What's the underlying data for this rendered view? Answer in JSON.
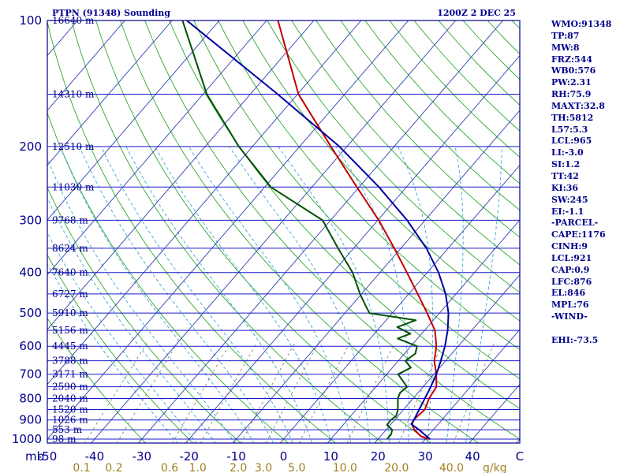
{
  "chart_data": {
    "type": "skew-t-log-p sounding",
    "title": "PTPN (91348) Sounding",
    "time_label": "1200Z  2 DEC 25",
    "units_label": "mb",
    "mixing_ratio_unit": "g/kg",
    "pressure_levels": [
      100,
      200,
      300,
      400,
      500,
      600,
      700,
      800,
      900,
      1000
    ],
    "pressure_lines_mb": [
      100,
      150,
      200,
      250,
      300,
      350,
      400,
      450,
      500,
      550,
      600,
      650,
      700,
      750,
      800,
      850,
      900,
      950,
      1000
    ],
    "height_labels": [
      {
        "p": 100,
        "label": "16640 m"
      },
      {
        "p": 150,
        "label": "14310 m"
      },
      {
        "p": 200,
        "label": "12510 m"
      },
      {
        "p": 250,
        "label": "11030 m"
      },
      {
        "p": 300,
        "label": "9768 m"
      },
      {
        "p": 350,
        "label": "8624 m"
      },
      {
        "p": 400,
        "label": "7640 m"
      },
      {
        "p": 450,
        "label": "6727 m"
      },
      {
        "p": 500,
        "label": "5910 m"
      },
      {
        "p": 550,
        "label": "5156 m"
      },
      {
        "p": 600,
        "label": "4445 m"
      },
      {
        "p": 650,
        "label": "3788 m"
      },
      {
        "p": 700,
        "label": "3171 m"
      },
      {
        "p": 750,
        "label": "2590 m"
      },
      {
        "p": 800,
        "label": "2040 m"
      },
      {
        "p": 850,
        "label": "1520 m"
      },
      {
        "p": 900,
        "label": "1026 m"
      },
      {
        "p": 950,
        "label": "553 m"
      },
      {
        "p": 1000,
        "label": "98 m"
      }
    ],
    "temp_ticks": [
      "-50",
      "-40",
      "-30",
      "-20",
      "-10",
      "0",
      "10",
      "20",
      "30",
      "40",
      "C"
    ],
    "mixing_ratio_ticks": [
      "0.1",
      "0.2",
      "0.6",
      "1.0",
      "2.0",
      "3.0",
      "5.0",
      "10.0",
      "20.0",
      "40.0"
    ],
    "temp_range_c": [
      -50,
      50
    ],
    "pressure_range_mb": [
      100,
      1050
    ],
    "series": [
      {
        "name": "Temperature",
        "color": "#c00000",
        "points": [
          [
            1000,
            31
          ],
          [
            985,
            28.6
          ],
          [
            950,
            26
          ],
          [
            925,
            24.6
          ],
          [
            900,
            24
          ],
          [
            850,
            24.5
          ],
          [
            800,
            23.4
          ],
          [
            750,
            22.8
          ],
          [
            700,
            20.5
          ],
          [
            650,
            17.6
          ],
          [
            600,
            15.4
          ],
          [
            550,
            12.2
          ],
          [
            500,
            7.4
          ],
          [
            450,
            1.9
          ],
          [
            400,
            -4.3
          ],
          [
            350,
            -11.4
          ],
          [
            300,
            -19.8
          ],
          [
            250,
            -30.5
          ],
          [
            200,
            -43.4
          ],
          [
            150,
            -59.8
          ],
          [
            100,
            -77.6
          ]
        ]
      },
      {
        "name": "Dewpoint",
        "color": "#005000",
        "points": [
          [
            1000,
            21.9
          ],
          [
            975,
            21.9
          ],
          [
            950,
            21.3
          ],
          [
            925,
            19.3
          ],
          [
            900,
            19.2
          ],
          [
            880,
            19.6
          ],
          [
            860,
            19.1
          ],
          [
            850,
            18.8
          ],
          [
            800,
            16.8
          ],
          [
            775,
            16.2
          ],
          [
            750,
            16.6
          ],
          [
            700,
            12.4
          ],
          [
            675,
            13.9
          ],
          [
            650,
            11.5
          ],
          [
            625,
            12.3
          ],
          [
            600,
            11.3
          ],
          [
            575,
            5.8
          ],
          [
            560,
            7.6
          ],
          [
            540,
            3.6
          ],
          [
            520,
            6.3
          ],
          [
            500,
            -4.8
          ],
          [
            480,
            -7
          ],
          [
            450,
            -10.3
          ],
          [
            400,
            -15.8
          ],
          [
            350,
            -23.3
          ],
          [
            300,
            -31.7
          ],
          [
            250,
            -48.7
          ],
          [
            200,
            -62.9
          ],
          [
            150,
            -79.2
          ],
          [
            100,
            -97.8
          ]
        ]
      },
      {
        "name": "Parcel",
        "color": "#0000a0",
        "points": [
          [
            1000,
            31
          ],
          [
            950,
            27
          ],
          [
            921,
            24.3
          ],
          [
            900,
            24.1
          ],
          [
            850,
            23.3
          ],
          [
            800,
            22.5
          ],
          [
            750,
            21.6
          ],
          [
            700,
            20.5
          ],
          [
            650,
            19
          ],
          [
            600,
            17.2
          ],
          [
            550,
            14.9
          ],
          [
            500,
            11.9
          ],
          [
            450,
            7.8
          ],
          [
            400,
            2.4
          ],
          [
            350,
            -4.6
          ],
          [
            300,
            -13.8
          ],
          [
            250,
            -25.8
          ],
          [
            200,
            -41.6
          ],
          [
            150,
            -64.2
          ],
          [
            100,
            -96.9
          ]
        ]
      }
    ]
  },
  "stats": [
    "WMO:91348",
    "TP:87",
    "MW:8",
    "FRZ:544",
    "WB0:576",
    "PW:2.31",
    "RH:75.9",
    "MAXT:32.8",
    "TH:5812",
    "L57:5.3",
    "LCL:965",
    "LI:-3.0",
    "SI:1.2",
    "TT:42",
    "KI:36",
    "SW:245",
    "EI:-1.1",
    "-PARCEL-",
    "CAPE:1176",
    "CINH:9",
    "LCL:921",
    "CAP:0.9",
    "LFC:876",
    "EL:846",
    "MPL:76",
    "-WIND-",
    "",
    "EHI:-73.5"
  ],
  "colors": {
    "frame": "#00008b",
    "isobar": "#1a1acc",
    "isotherm": "#3040b0",
    "dry_adiabat": "#2ca82c",
    "moist_adiabat": "#3aa7d8",
    "mixing_ratio": "#7a7a52",
    "label_text": "#00008b",
    "mixing_ratio_text": "#a08020"
  }
}
